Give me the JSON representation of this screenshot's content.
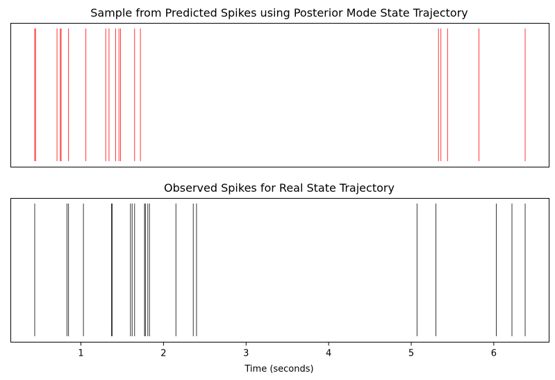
{
  "chart_data": [
    {
      "type": "eventplot",
      "title": "Sample from Predicted Spikes using Posterior Mode State Trajectory",
      "xlabel": "",
      "ylabel": "",
      "xlim": [
        0.15,
        6.67
      ],
      "color": "#ff0000",
      "show_xticks": false,
      "events": [
        0.44,
        0.45,
        0.71,
        0.75,
        0.76,
        0.85,
        1.06,
        1.3,
        1.34,
        1.42,
        1.46,
        1.48,
        1.65,
        1.72,
        5.33,
        5.36,
        5.44,
        5.82,
        6.38
      ]
    },
    {
      "type": "eventplot",
      "title": "Observed Spikes for Real State Trajectory",
      "xlabel": "Time (seconds)",
      "ylabel": "",
      "xlim": [
        0.15,
        6.67
      ],
      "color": "#000000",
      "show_xticks": true,
      "xticks": [
        1,
        2,
        3,
        4,
        5,
        6
      ],
      "xtick_labels": [
        "1",
        "2",
        "3",
        "4",
        "5",
        "6"
      ],
      "events": [
        0.44,
        0.83,
        0.85,
        1.03,
        1.37,
        1.38,
        1.6,
        1.62,
        1.65,
        1.77,
        1.78,
        1.81,
        1.83,
        2.15,
        2.36,
        2.4,
        5.07,
        5.3,
        6.03,
        6.22,
        6.38
      ]
    }
  ]
}
